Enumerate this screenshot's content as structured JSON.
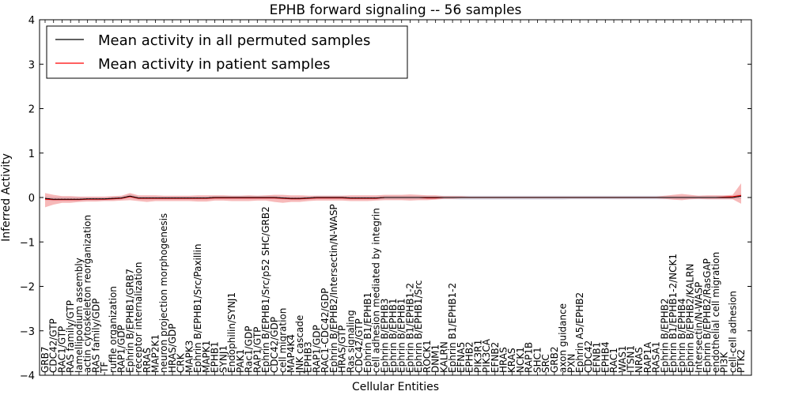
{
  "chart_data": {
    "type": "line",
    "title": "EPHB forward signaling -- 56 samples",
    "xlabel": "Cellular Entities",
    "ylabel": "Inferred Activity",
    "ylim": [
      -4,
      4
    ],
    "yticks": [
      4,
      3,
      2,
      1,
      0,
      -1,
      -2,
      -3,
      -4
    ],
    "ytick_labels": [
      "4",
      "3",
      "2",
      "1",
      "0",
      "−1",
      "−2",
      "−3",
      "−4"
    ],
    "legend": {
      "location": "upper-left",
      "entries": [
        {
          "label": "Mean activity in all permuted samples",
          "color": "#000000"
        },
        {
          "label": "Mean activity in patient samples",
          "color": "#ff0000"
        }
      ]
    },
    "colors": {
      "patient_line": "#ff0000",
      "patient_band": "#f08080",
      "permuted_line": "#000000",
      "permuted_band": "#c8c8dc"
    },
    "categories": [
      "GRB7",
      "CDC42/GTP",
      "RAC1/GTP",
      "RAS family/GTP",
      "lamellipodium assembly",
      "actin cytoskeleton reorganization",
      "RAS family/GDP",
      "TF",
      "ruffle organization",
      "RAP1/GDP",
      "Ephrin B/EPHB1/GRB7",
      "receptor internalization",
      "RRAS",
      "MAP2K1",
      "neuron projection morphogenesis",
      "HRAS/GDP",
      "CRK",
      "MAPK3",
      "Ephrin B/EPHB1/Src/Paxillin",
      "MAPK1",
      "EPHB1",
      "SYNJ1",
      "Endophilin/SYNJ1",
      "PAK1",
      "Rac1/GDP",
      "RAP1/GTP",
      "Ephrin B/EPHB1/Src/p52 SHC/GRB2",
      "CDC42/GDP",
      "cell migration",
      "MAP4K4",
      "JNK cascade",
      "EPHB3",
      "RAP1/GDP",
      "RAC1-CDC42/GDP",
      "Ephrin B/EPHB2/Intersectin/N-WASP",
      "HRAS/GTP",
      "Ras signaling",
      "CDC42/GTP",
      "Ephrin B1/EPHB1",
      "cell adhesion mediated by integrin",
      "Ephrin B/EPHB3",
      "Ephrin B/EPHB1",
      "Ephrin B/EPHB1",
      "Ephrin B1/EPHB1-2",
      "Ephrin B/EPHB1/Src",
      "ROCK1",
      "DNM1",
      "KALRN",
      "Ephrin B1/EPHB1-2",
      "EFNA5",
      "EPHB2",
      "PIK3R1",
      "PIK3CA",
      "EFNB2",
      "HRAS",
      "KRAS",
      "NCK1",
      "RAP1B",
      "SHC1",
      "SRC",
      "GRB2",
      "axon guidance",
      "PXN",
      "Ephrin A5/EPHB2",
      "CDC42",
      "EFNB1",
      "EPHB4",
      "RAC1",
      "WAS1",
      "ITSN1",
      "NRAS",
      "RAP1A",
      "RASA1",
      "Ephrin B/EPHB2",
      "Ephrin B1/EPHB1-2/NCK1",
      "Ephrin B/EPHB4",
      "Ephrin B/EPHB2/KALRN",
      "Intersectin/N-WASP",
      "Ephrin B/EPHB2/RasGAP",
      "endothelial cell migration",
      "PI3K",
      "cell-cell adhesion",
      "PTK2"
    ],
    "series": [
      {
        "name": "Mean activity in patient samples",
        "values": [
          -0.04,
          -0.05,
          -0.05,
          -0.05,
          -0.05,
          -0.04,
          -0.04,
          -0.04,
          -0.03,
          -0.02,
          0.02,
          -0.02,
          -0.02,
          -0.02,
          -0.02,
          -0.02,
          -0.02,
          -0.02,
          -0.02,
          -0.02,
          -0.01,
          -0.01,
          -0.01,
          -0.01,
          -0.01,
          -0.01,
          -0.01,
          -0.01,
          -0.02,
          -0.03,
          -0.03,
          -0.02,
          -0.01,
          -0.01,
          -0.01,
          -0.01,
          -0.02,
          -0.02,
          -0.02,
          -0.02,
          0,
          0,
          0,
          0,
          0,
          -0.01,
          -0.01,
          0,
          0,
          0,
          0,
          0,
          0,
          0,
          0,
          0,
          0,
          0,
          0,
          0,
          0,
          0,
          0,
          0,
          0,
          0,
          0,
          0,
          0,
          0,
          0,
          0,
          0,
          0,
          0,
          0,
          0,
          0,
          0,
          0,
          0.01,
          0.02,
          0.05
        ],
        "lower": [
          -0.22,
          -0.16,
          -0.12,
          -0.12,
          -0.1,
          -0.09,
          -0.09,
          -0.08,
          -0.08,
          -0.07,
          -0.06,
          -0.08,
          -0.1,
          -0.08,
          -0.08,
          -0.08,
          -0.08,
          -0.08,
          -0.09,
          -0.09,
          -0.07,
          -0.07,
          -0.08,
          -0.08,
          -0.08,
          -0.07,
          -0.07,
          -0.1,
          -0.12,
          -0.1,
          -0.1,
          -0.08,
          -0.07,
          -0.07,
          -0.07,
          -0.07,
          -0.08,
          -0.08,
          -0.08,
          -0.07,
          -0.06,
          -0.06,
          -0.06,
          -0.07,
          -0.06,
          -0.06,
          -0.05,
          -0.03,
          -0.03,
          -0.02,
          -0.02,
          -0.02,
          -0.02,
          -0.02,
          -0.02,
          -0.02,
          -0.02,
          -0.02,
          -0.02,
          -0.02,
          -0.02,
          -0.02,
          -0.02,
          -0.02,
          -0.02,
          -0.02,
          -0.02,
          -0.02,
          -0.02,
          -0.02,
          -0.02,
          -0.02,
          -0.02,
          -0.03,
          -0.05,
          -0.06,
          -0.04,
          -0.03,
          -0.04,
          -0.04,
          -0.04,
          -0.04,
          -0.14
        ],
        "upper": [
          0.1,
          0.06,
          0.03,
          0.03,
          0.02,
          0.02,
          0.02,
          0.02,
          0.03,
          0.04,
          0.1,
          0.05,
          0.05,
          0.05,
          0.04,
          0.04,
          0.04,
          0.04,
          0.05,
          0.05,
          0.05,
          0.05,
          0.04,
          0.04,
          0.05,
          0.04,
          0.05,
          0.06,
          0.06,
          0.05,
          0.05,
          0.04,
          0.04,
          0.04,
          0.04,
          0.04,
          0.05,
          0.05,
          0.05,
          0.05,
          0.06,
          0.06,
          0.06,
          0.07,
          0.06,
          0.05,
          0.05,
          0.03,
          0.03,
          0.03,
          0.02,
          0.02,
          0.02,
          0.02,
          0.02,
          0.02,
          0.02,
          0.02,
          0.02,
          0.02,
          0.02,
          0.02,
          0.02,
          0.02,
          0.02,
          0.02,
          0.02,
          0.02,
          0.02,
          0.02,
          0.02,
          0.02,
          0.02,
          0.04,
          0.06,
          0.08,
          0.06,
          0.04,
          0.05,
          0.05,
          0.05,
          0.06,
          0.32
        ]
      },
      {
        "name": "Mean activity in all permuted samples",
        "values": [
          -0.02,
          -0.04,
          -0.04,
          -0.04,
          -0.04,
          -0.03,
          -0.03,
          -0.03,
          -0.02,
          -0.01,
          0.03,
          -0.01,
          -0.01,
          -0.01,
          -0.01,
          -0.01,
          -0.01,
          -0.01,
          -0.01,
          -0.01,
          0,
          0,
          0,
          0,
          0,
          0,
          0,
          0,
          -0.01,
          -0.02,
          -0.02,
          -0.01,
          0,
          0,
          0,
          0,
          -0.01,
          -0.01,
          -0.01,
          -0.01,
          0,
          0,
          0,
          0,
          0,
          0,
          0,
          0,
          0,
          0,
          0,
          0,
          0,
          0,
          0,
          0,
          0,
          0,
          0,
          0,
          0,
          0,
          0,
          0,
          0,
          0,
          0,
          0,
          0,
          0,
          0,
          0,
          0,
          0,
          0,
          0,
          0,
          0,
          0,
          0,
          0,
          0,
          0.03
        ],
        "lower": [
          -0.07,
          -0.08,
          -0.08,
          -0.08,
          -0.08,
          -0.07,
          -0.07,
          -0.07,
          -0.06,
          -0.05,
          -0.01,
          -0.05,
          -0.05,
          -0.05,
          -0.05,
          -0.05,
          -0.05,
          -0.05,
          -0.05,
          -0.05,
          -0.04,
          -0.04,
          -0.04,
          -0.04,
          -0.04,
          -0.04,
          -0.04,
          -0.04,
          -0.05,
          -0.06,
          -0.06,
          -0.05,
          -0.04,
          -0.04,
          -0.04,
          -0.04,
          -0.05,
          -0.05,
          -0.05,
          -0.05,
          -0.04,
          -0.04,
          -0.04,
          -0.04,
          -0.04,
          -0.04,
          -0.04,
          -0.04,
          -0.04,
          -0.05,
          -0.05,
          -0.05,
          -0.05,
          -0.05,
          -0.05,
          -0.05,
          -0.05,
          -0.05,
          -0.05,
          -0.05,
          -0.05,
          -0.05,
          -0.04,
          -0.04,
          -0.04,
          -0.04,
          -0.04,
          -0.04,
          -0.04,
          -0.04,
          -0.04,
          -0.04,
          -0.04,
          -0.04,
          -0.04,
          -0.04,
          -0.04,
          -0.04,
          -0.04,
          -0.04,
          -0.04,
          -0.04,
          -0.03
        ],
        "upper": [
          0.03,
          0.01,
          0.01,
          0.01,
          0.01,
          0.01,
          0.01,
          0.01,
          0.02,
          0.03,
          0.07,
          0.03,
          0.03,
          0.03,
          0.03,
          0.03,
          0.03,
          0.03,
          0.03,
          0.03,
          0.04,
          0.04,
          0.04,
          0.04,
          0.04,
          0.04,
          0.04,
          0.04,
          0.03,
          0.02,
          0.02,
          0.03,
          0.04,
          0.04,
          0.04,
          0.04,
          0.03,
          0.03,
          0.03,
          0.03,
          0.04,
          0.04,
          0.04,
          0.04,
          0.04,
          0.04,
          0.04,
          0.04,
          0.04,
          0.04,
          0.04,
          0.04,
          0.04,
          0.04,
          0.04,
          0.04,
          0.04,
          0.04,
          0.04,
          0.04,
          0.04,
          0.04,
          0.04,
          0.04,
          0.04,
          0.04,
          0.04,
          0.04,
          0.04,
          0.04,
          0.04,
          0.04,
          0.04,
          0.04,
          0.04,
          0.04,
          0.04,
          0.04,
          0.04,
          0.04,
          0.04,
          0.04,
          0.09
        ]
      }
    ]
  }
}
